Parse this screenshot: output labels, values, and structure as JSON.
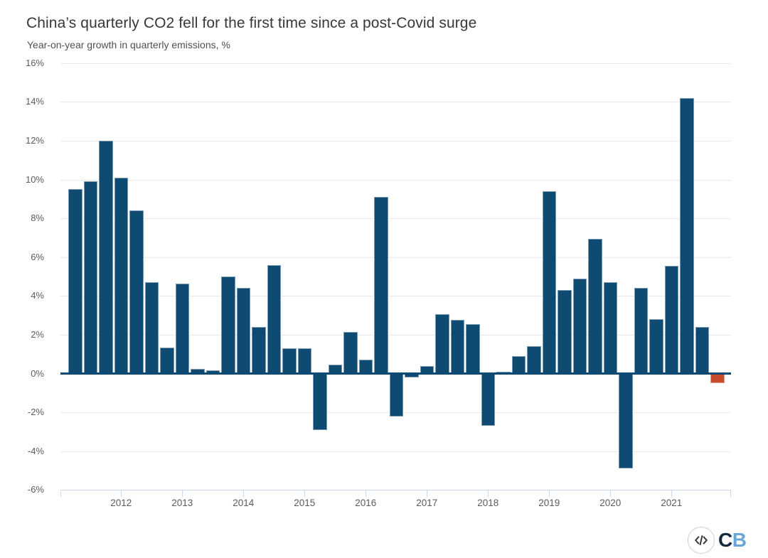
{
  "header": {
    "title": "China’s quarterly CO2 fell for the first time since a post-Covid surge",
    "subtitle": "Year-on-year growth in quarterly emissions, %"
  },
  "y_axis": {
    "tick_values": [
      16,
      14,
      12,
      10,
      8,
      6,
      4,
      2,
      0,
      -2,
      -4,
      -6
    ],
    "tick_labels": [
      "16%",
      "14%",
      "12%",
      "10%",
      "8%",
      "6%",
      "4%",
      "2%",
      "0%",
      "-2%",
      "-4%",
      "-6%"
    ]
  },
  "x_axis": {
    "year_labels": [
      "2012",
      "2013",
      "2014",
      "2015",
      "2016",
      "2017",
      "2018",
      "2019",
      "2020",
      "2021"
    ]
  },
  "chart_data": {
    "type": "bar",
    "title": "China’s quarterly CO2 fell for the first time since a post-Covid surge",
    "ylabel": "Year-on-year growth in quarterly emissions, %",
    "unit": "%",
    "ylim": [
      -6,
      16
    ],
    "grid": true,
    "legend": false,
    "x": [
      "2011 Q1",
      "2011 Q2",
      "2011 Q3",
      "2011 Q4",
      "2012 Q1",
      "2012 Q2",
      "2012 Q3",
      "2012 Q4",
      "2013 Q1",
      "2013 Q2",
      "2013 Q3",
      "2013 Q4",
      "2014 Q1",
      "2014 Q2",
      "2014 Q3",
      "2014 Q4",
      "2015 Q1",
      "2015 Q2",
      "2015 Q3",
      "2015 Q4",
      "2016 Q1",
      "2016 Q2",
      "2016 Q3",
      "2016 Q4",
      "2017 Q1",
      "2017 Q2",
      "2017 Q3",
      "2017 Q4",
      "2018 Q1",
      "2018 Q2",
      "2018 Q3",
      "2018 Q4",
      "2019 Q1",
      "2019 Q2",
      "2019 Q3",
      "2019 Q4",
      "2020 Q1",
      "2020 Q2",
      "2020 Q3",
      "2020 Q4",
      "2021 Q1",
      "2021 Q2",
      "2021 Q3"
    ],
    "values": [
      9.5,
      9.9,
      12.0,
      10.1,
      8.4,
      4.7,
      1.35,
      4.65,
      0.25,
      0.15,
      5.0,
      4.4,
      2.4,
      5.6,
      1.3,
      1.3,
      -2.9,
      0.45,
      2.15,
      0.7,
      9.1,
      -2.2,
      -0.2,
      0.4,
      3.05,
      2.75,
      2.55,
      -2.7,
      0.1,
      0.9,
      1.4,
      9.4,
      4.3,
      4.9,
      6.95,
      4.7,
      -4.9,
      4.4,
      2.8,
      5.55,
      14.2,
      2.4,
      -0.5
    ],
    "bar_color": "#0f4a73",
    "highlight_color": "#c84b2c",
    "highlight_index": 42,
    "gridline_color": "#e9e9e9",
    "axis_line_color": "#c9d9eb",
    "zero_line_color": "#0f4a73"
  },
  "branding": {
    "code_icon": "code-brackets",
    "logo_c": "C",
    "logo_b": "B"
  }
}
